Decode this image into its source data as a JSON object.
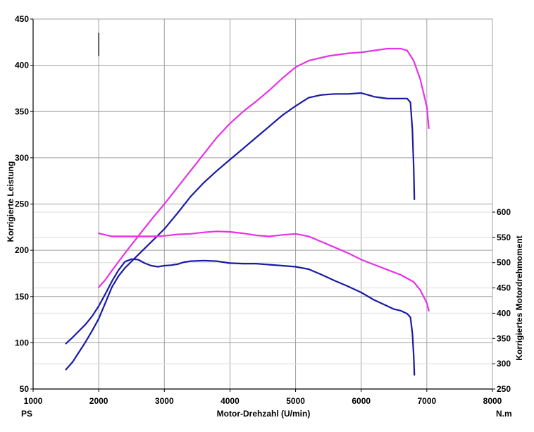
{
  "chart_data": {
    "type": "line",
    "xlabel": "Motor-Drehzahl (U/min)",
    "ylabel_left": "Korrigierte Leistung",
    "ylabel_right": "Korrigiertes Motordrehmoment",
    "left_unit": "PS",
    "right_unit": "N.m",
    "xlim": [
      1000,
      8000
    ],
    "ylim_left": [
      50,
      450
    ],
    "ylim_right": [
      250,
      600
    ],
    "x_ticks": [
      "1000",
      "2000",
      "3000",
      "4000",
      "5000",
      "6000",
      "7000",
      "8000"
    ],
    "y_left_ticks": [
      "50",
      "100",
      "150",
      "200",
      "250",
      "300",
      "350",
      "400",
      "450"
    ],
    "y_right_ticks": [
      "250",
      "300",
      "350",
      "400",
      "450",
      "500",
      "550",
      "600"
    ],
    "grid": true,
    "colors": {
      "magenta": "#e533e5",
      "blue": "#1a1aa6"
    },
    "series": [
      {
        "axis": "left",
        "color": "magenta",
        "points": [
          [
            2000,
            160
          ],
          [
            2100,
            168
          ],
          [
            2200,
            178
          ],
          [
            2400,
            197
          ],
          [
            2600,
            215
          ],
          [
            2800,
            233
          ],
          [
            3000,
            250
          ],
          [
            3200,
            268
          ],
          [
            3400,
            286
          ],
          [
            3600,
            304
          ],
          [
            3800,
            322
          ],
          [
            4000,
            337
          ],
          [
            4200,
            350
          ],
          [
            4400,
            361
          ],
          [
            4600,
            373
          ],
          [
            4800,
            386
          ],
          [
            5000,
            398
          ],
          [
            5200,
            405
          ],
          [
            5500,
            410
          ],
          [
            5800,
            413
          ],
          [
            6000,
            414
          ],
          [
            6200,
            416
          ],
          [
            6400,
            418
          ],
          [
            6600,
            418
          ],
          [
            6700,
            416
          ],
          [
            6800,
            405
          ],
          [
            6900,
            385
          ],
          [
            7000,
            355
          ],
          [
            7030,
            332
          ]
        ]
      },
      {
        "axis": "left",
        "color": "blue",
        "points": [
          [
            1500,
            71
          ],
          [
            1600,
            79
          ],
          [
            1700,
            90
          ],
          [
            1800,
            101
          ],
          [
            1900,
            113
          ],
          [
            2000,
            126
          ],
          [
            2100,
            143
          ],
          [
            2200,
            160
          ],
          [
            2300,
            172
          ],
          [
            2400,
            181
          ],
          [
            2600,
            195
          ],
          [
            2800,
            209
          ],
          [
            3000,
            223
          ],
          [
            3200,
            240
          ],
          [
            3400,
            258
          ],
          [
            3600,
            273
          ],
          [
            3800,
            286
          ],
          [
            4000,
            298
          ],
          [
            4200,
            310
          ],
          [
            4400,
            322
          ],
          [
            4600,
            334
          ],
          [
            4800,
            346
          ],
          [
            5000,
            356
          ],
          [
            5200,
            365
          ],
          [
            5400,
            368
          ],
          [
            5600,
            369
          ],
          [
            5800,
            369
          ],
          [
            6000,
            370
          ],
          [
            6100,
            368
          ],
          [
            6200,
            366
          ],
          [
            6300,
            365
          ],
          [
            6400,
            364
          ],
          [
            6500,
            364
          ],
          [
            6550,
            364
          ],
          [
            6600,
            364
          ],
          [
            6700,
            364
          ],
          [
            6750,
            360
          ],
          [
            6780,
            330
          ],
          [
            6800,
            290
          ],
          [
            6810,
            255
          ]
        ]
      },
      {
        "axis": "right",
        "color": "magenta",
        "points": [
          [
            2000,
            558
          ],
          [
            2100,
            555
          ],
          [
            2200,
            552
          ],
          [
            2400,
            552
          ],
          [
            2600,
            552
          ],
          [
            2800,
            552
          ],
          [
            3000,
            553
          ],
          [
            3200,
            556
          ],
          [
            3400,
            557
          ],
          [
            3600,
            560
          ],
          [
            3800,
            562
          ],
          [
            4000,
            561
          ],
          [
            4200,
            558
          ],
          [
            4400,
            554
          ],
          [
            4600,
            552
          ],
          [
            4800,
            555
          ],
          [
            5000,
            557
          ],
          [
            5200,
            552
          ],
          [
            5400,
            541
          ],
          [
            5600,
            530
          ],
          [
            5800,
            519
          ],
          [
            6000,
            506
          ],
          [
            6200,
            496
          ],
          [
            6400,
            486
          ],
          [
            6600,
            476
          ],
          [
            6800,
            462
          ],
          [
            6900,
            446
          ],
          [
            7000,
            420
          ],
          [
            7030,
            405
          ]
        ]
      },
      {
        "axis": "right",
        "color": "blue",
        "points": [
          [
            1500,
            340
          ],
          [
            1600,
            352
          ],
          [
            1700,
            365
          ],
          [
            1800,
            378
          ],
          [
            1900,
            394
          ],
          [
            2000,
            414
          ],
          [
            2100,
            438
          ],
          [
            2200,
            463
          ],
          [
            2300,
            485
          ],
          [
            2400,
            502
          ],
          [
            2500,
            507
          ],
          [
            2600,
            506
          ],
          [
            2700,
            499
          ],
          [
            2800,
            494
          ],
          [
            2900,
            492
          ],
          [
            3000,
            494
          ],
          [
            3100,
            495
          ],
          [
            3200,
            497
          ],
          [
            3300,
            501
          ],
          [
            3400,
            503
          ],
          [
            3600,
            504
          ],
          [
            3800,
            503
          ],
          [
            4000,
            499
          ],
          [
            4200,
            498
          ],
          [
            4400,
            498
          ],
          [
            4600,
            496
          ],
          [
            4800,
            494
          ],
          [
            5000,
            492
          ],
          [
            5200,
            487
          ],
          [
            5400,
            476
          ],
          [
            5600,
            464
          ],
          [
            5800,
            453
          ],
          [
            6000,
            441
          ],
          [
            6200,
            426
          ],
          [
            6400,
            414
          ],
          [
            6500,
            408
          ],
          [
            6600,
            405
          ],
          [
            6700,
            399
          ],
          [
            6750,
            392
          ],
          [
            6780,
            360
          ],
          [
            6800,
            317
          ],
          [
            6810,
            278
          ]
        ]
      }
    ],
    "annotations": [
      {
        "type": "vertical-marker",
        "x": 2000,
        "from": 410,
        "to": 435,
        "axis": "left"
      }
    ]
  }
}
